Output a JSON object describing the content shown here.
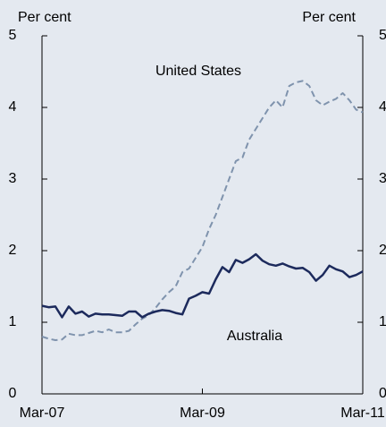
{
  "chart_data": {
    "type": "line",
    "y_label": "Per cent",
    "y2_label": "Per cent",
    "categories": [
      "Mar-07",
      null,
      null,
      null,
      null,
      null,
      null,
      null,
      null,
      null,
      null,
      null,
      null,
      null,
      null,
      null,
      null,
      null,
      null,
      null,
      null,
      null,
      null,
      null,
      "Mar-09",
      null,
      null,
      null,
      null,
      null,
      null,
      null,
      null,
      null,
      null,
      null,
      null,
      null,
      null,
      null,
      null,
      null,
      null,
      null,
      null,
      null,
      null,
      null,
      "Mar-11"
    ],
    "series": [
      {
        "name": "United States",
        "color": "#7f93ad",
        "dashed": true,
        "values": [
          0.8,
          0.77,
          0.75,
          0.76,
          0.84,
          0.82,
          0.82,
          0.85,
          0.88,
          0.86,
          0.9,
          0.86,
          0.86,
          0.88,
          0.97,
          1.05,
          1.1,
          1.2,
          1.32,
          1.42,
          1.5,
          1.7,
          1.75,
          1.9,
          2.05,
          2.3,
          2.5,
          2.75,
          3.0,
          3.25,
          3.3,
          3.55,
          3.7,
          3.85,
          4.0,
          4.1,
          4.0,
          4.3,
          4.35,
          4.37,
          4.3,
          4.1,
          4.03,
          4.08,
          4.12,
          4.2,
          4.1,
          3.97,
          3.93
        ]
      },
      {
        "name": "Australia",
        "color": "#1c2a5c",
        "dashed": false,
        "values": [
          1.23,
          1.21,
          1.22,
          1.07,
          1.22,
          1.12,
          1.15,
          1.08,
          1.12,
          1.11,
          1.11,
          1.1,
          1.09,
          1.15,
          1.15,
          1.07,
          1.12,
          1.15,
          1.17,
          1.16,
          1.13,
          1.11,
          1.33,
          1.37,
          1.42,
          1.4,
          1.6,
          1.77,
          1.7,
          1.87,
          1.83,
          1.88,
          1.95,
          1.86,
          1.81,
          1.79,
          1.82,
          1.78,
          1.75,
          1.76,
          1.7,
          1.58,
          1.66,
          1.79,
          1.74,
          1.71,
          1.63,
          1.66,
          1.71
        ]
      }
    ],
    "ylim": [
      0,
      5
    ],
    "yticks": [
      0,
      1,
      2,
      3,
      4,
      5
    ],
    "y2lim": [
      0,
      5
    ],
    "y2ticks": [
      0,
      1,
      2,
      3,
      4,
      5
    ]
  }
}
